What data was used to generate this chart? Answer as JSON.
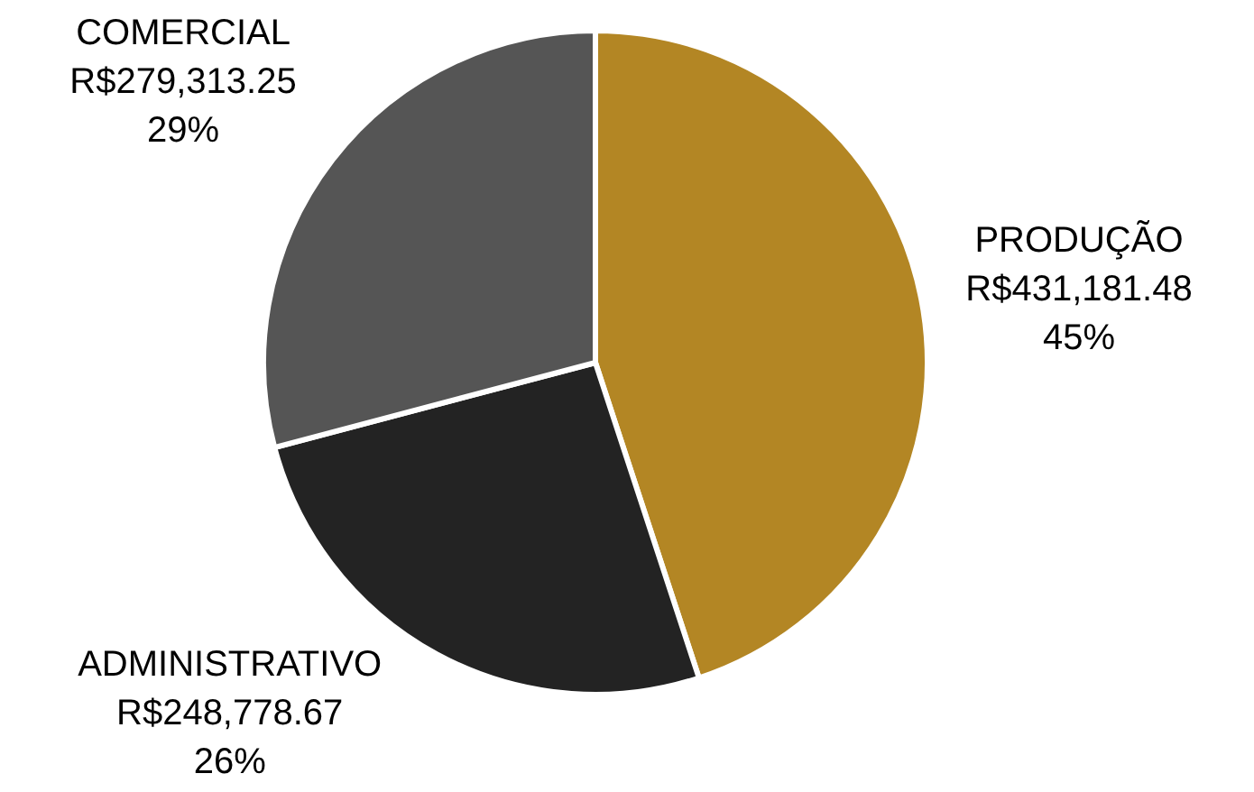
{
  "chart_data": {
    "type": "pie",
    "categories": [
      "PRODUÇÃO",
      "ADMINISTRATIVO",
      "COMERCIAL"
    ],
    "values": [
      431181.48,
      248778.67,
      279313.25
    ],
    "colors": [
      "#b38624",
      "#232323",
      "#555555"
    ],
    "value_labels": [
      "R$431,181.48\n45%",
      "R$248,778.67\n26%",
      "R$279,313.25\n29%"
    ]
  }
}
